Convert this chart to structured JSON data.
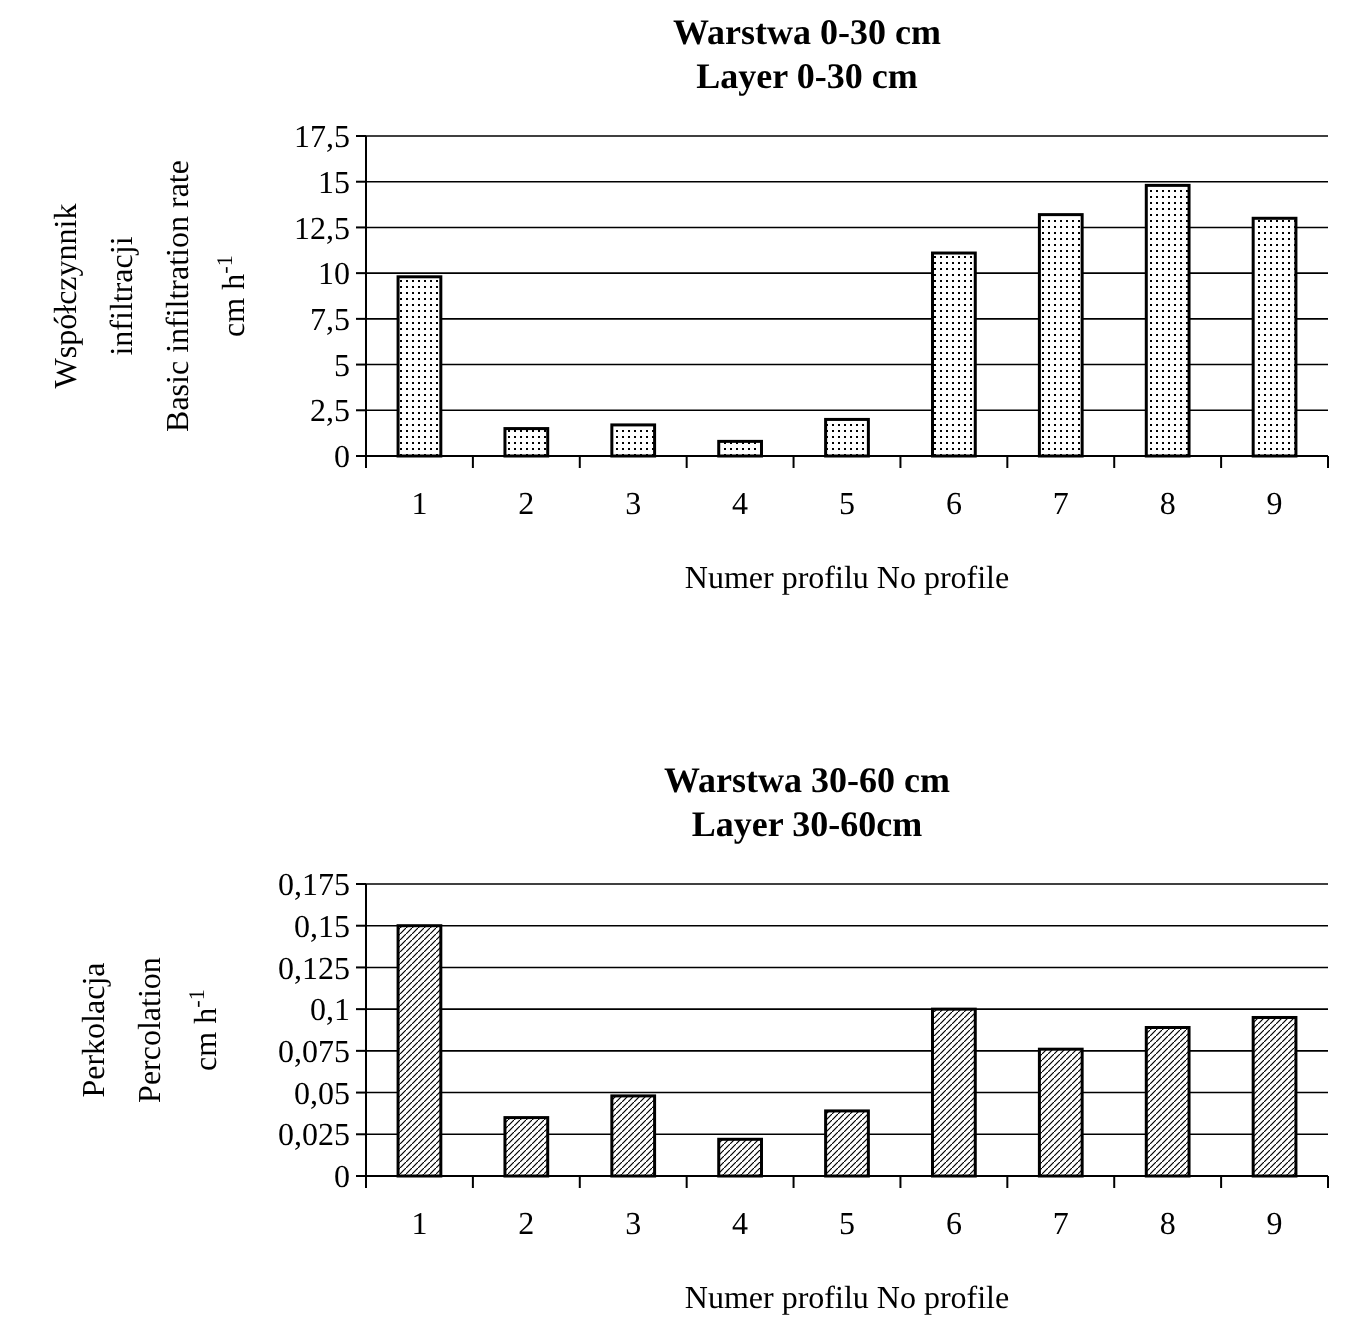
{
  "chart_data": [
    {
      "type": "bar",
      "title": "Warstwa 0-30 cm\nLayer 0-30 cm",
      "xlabel": "Numer profilu  No profile",
      "ylabel": "Współczynnik\ninfiltracji\nBasic infiltration rate\ncm h$^{-1}$",
      "categories": [
        "1",
        "2",
        "3",
        "4",
        "5",
        "6",
        "7",
        "8",
        "9"
      ],
      "values": [
        9.8,
        1.5,
        1.7,
        0.8,
        2.0,
        11.1,
        13.2,
        14.8,
        13.0
      ],
      "color": "#000000",
      "ylim": [
        0,
        17.5
      ],
      "yticks": [
        0,
        {
          "value": 2.5,
          "label": "2,5"
        },
        5,
        {
          "value": 7.5,
          "label": "7,5"
        },
        10,
        {
          "value": 12.5,
          "label": "12,5"
        },
        15,
        {
          "value": 17.5,
          "label": "17,5"
        }
      ],
      "grid": "y"
    },
    {
      "type": "bar",
      "title": "Warstwa 30-60 cm\nLayer 30-60cm",
      "xlabel": "Numer profilu  No profile",
      "ylabel": "Perkolacja\nPercolation\ncm h$^{-1}$",
      "categories": [
        "1",
        "2",
        "3",
        "4",
        "5",
        "6",
        "7",
        "8",
        "9"
      ],
      "values": [
        0.15,
        0.035,
        0.048,
        0.022,
        0.039,
        0.1,
        0.076,
        0.089,
        0.095
      ],
      "color": "#000000",
      "ylim": [
        0,
        0.175
      ],
      "yticks": [
        0,
        {
          "value": 0.025,
          "label": "0,025"
        },
        {
          "value": 0.05,
          "label": "0,05"
        },
        {
          "value": 0.075,
          "label": "0,075"
        },
        {
          "value": 0.1,
          "label": "0,1"
        },
        {
          "value": 0.125,
          "label": "0,125"
        },
        {
          "value": 0.15,
          "label": "0,15"
        },
        {
          "value": 0.175,
          "label": "0,175"
        }
      ],
      "grid": "y"
    }
  ]
}
